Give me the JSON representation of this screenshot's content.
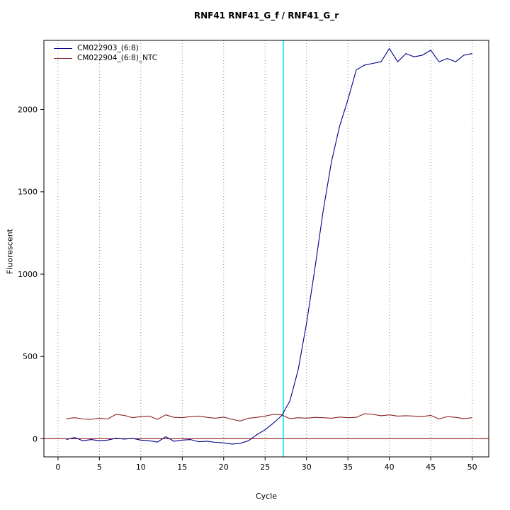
{
  "chart_data": {
    "type": "line",
    "title": "RNF41  RNF41_G_f / RNF41_G_r",
    "xlabel": "Cycle",
    "ylabel": "Fluorescent",
    "xlim": [
      -1.7,
      52
    ],
    "ylim": [
      -110,
      2420
    ],
    "x_ticks": [
      0,
      5,
      10,
      15,
      20,
      25,
      30,
      35,
      40,
      45,
      50
    ],
    "y_ticks": [
      0,
      500,
      1000,
      1500,
      2000
    ],
    "grid": "vertical-dotted",
    "grid_color": "#8a8a8a",
    "legend_position": "top-left",
    "background": "#ffffff",
    "threshold_line": {
      "y": 0,
      "color": "#8b0000"
    },
    "ct_line": {
      "x": 27.2,
      "color": "#00e5ee"
    },
    "x": [
      1,
      2,
      3,
      4,
      5,
      6,
      7,
      8,
      9,
      10,
      11,
      12,
      13,
      14,
      15,
      16,
      17,
      18,
      19,
      20,
      21,
      22,
      23,
      24,
      25,
      26,
      27,
      28,
      29,
      30,
      31,
      32,
      33,
      34,
      35,
      36,
      37,
      38,
      39,
      40,
      41,
      42,
      43,
      44,
      45,
      46,
      47,
      48,
      49,
      50
    ],
    "series": [
      {
        "name": "CM022903_(6:8)",
        "color": "#00008b",
        "values": [
          -5,
          8,
          -12,
          -5,
          -12,
          -8,
          3,
          -2,
          2,
          -8,
          -12,
          -20,
          12,
          -15,
          -8,
          -5,
          -18,
          -15,
          -22,
          -25,
          -32,
          -28,
          -12,
          25,
          55,
          95,
          140,
          230,
          420,
          700,
          1030,
          1380,
          1680,
          1900,
          2060,
          2240,
          2270,
          2280,
          2290,
          2370,
          2290,
          2340,
          2320,
          2330,
          2360,
          2290,
          2310,
          2290,
          2330,
          2340
        ]
      },
      {
        "name": "CM022904_(6:8)_NTC",
        "color": "#8b2323",
        "values": [
          122,
          128,
          120,
          118,
          125,
          120,
          148,
          142,
          128,
          135,
          138,
          118,
          145,
          130,
          128,
          135,
          138,
          130,
          125,
          132,
          118,
          108,
          125,
          130,
          138,
          148,
          145,
          122,
          128,
          125,
          130,
          128,
          125,
          132,
          128,
          130,
          152,
          148,
          140,
          145,
          138,
          140,
          138,
          135,
          142,
          120,
          135,
          130,
          122,
          128
        ]
      }
    ]
  }
}
